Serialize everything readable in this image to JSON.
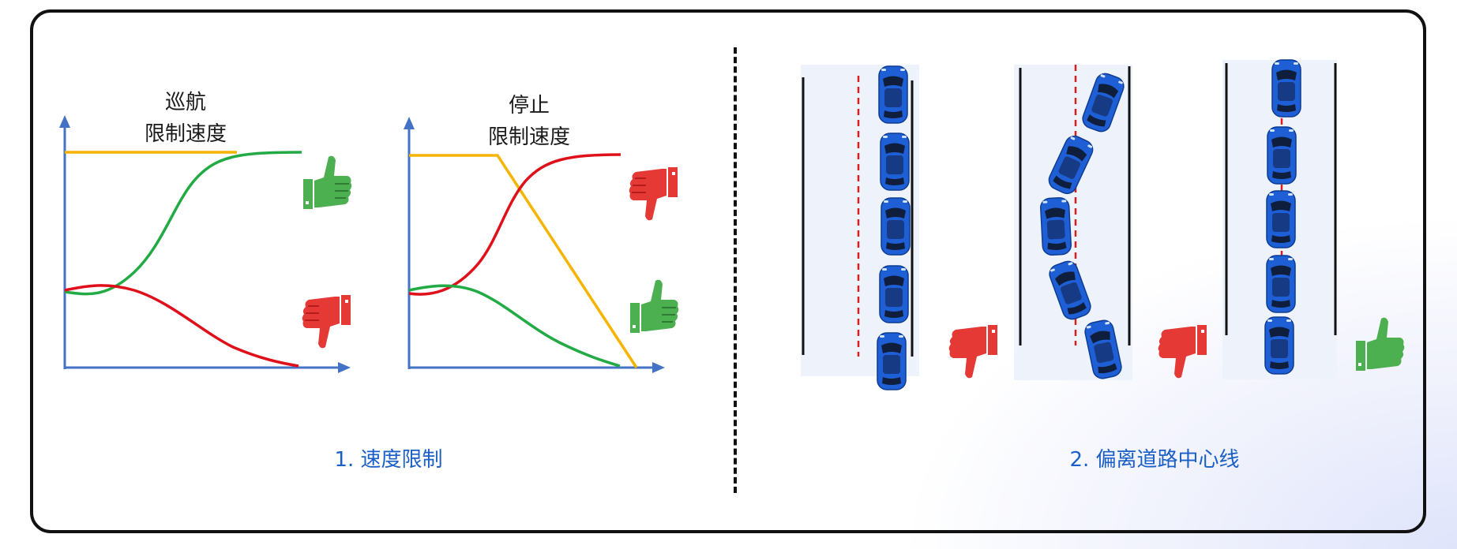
{
  "section1": {
    "caption": "1. 速度限制",
    "chart1": {
      "label_line1": "巡航",
      "label_line2": "限制速度"
    },
    "chart2": {
      "label_line1": "停止",
      "label_line2": "限制速度"
    }
  },
  "section2": {
    "caption": "2. 偏离道路中心线"
  },
  "colors": {
    "axis": "#4472c4",
    "limit": "#f5b400",
    "green": "#22aa44",
    "red": "#e0101a",
    "thumb_green": "#4caf50",
    "thumb_red": "#e53935",
    "car": "#1f5fd6",
    "center_line": "#d62020"
  },
  "icons": [
    "thumbs-up-icon",
    "thumbs-down-icon",
    "car-icon"
  ]
}
